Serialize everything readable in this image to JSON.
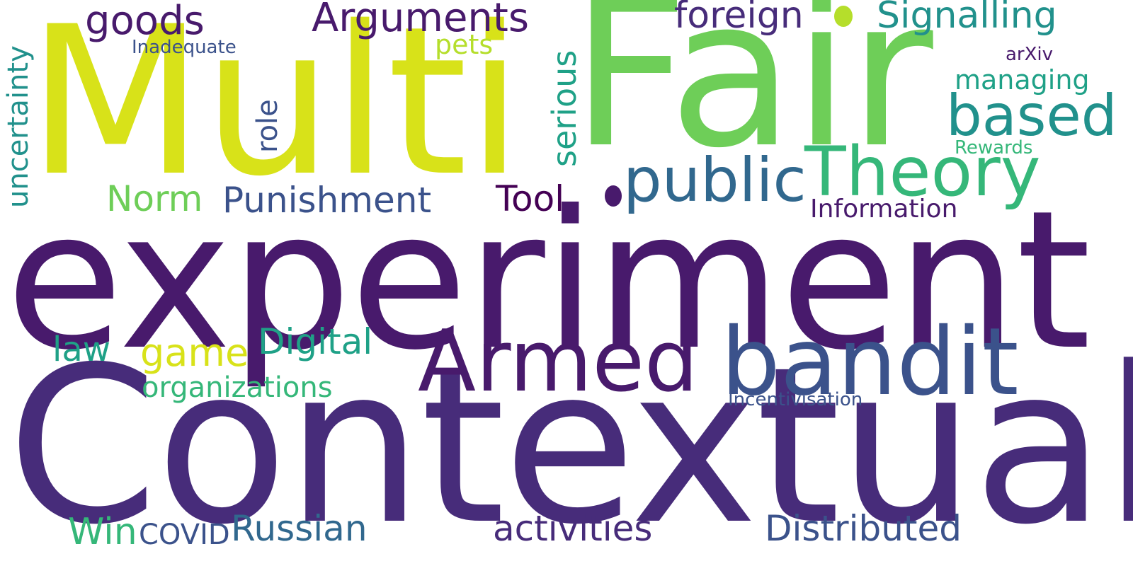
{
  "words": {
    "experiment": "experiment",
    "contextual": "Contextual",
    "multi": "Multi",
    "fair": "Fair",
    "armed": "Armed",
    "bandit": "bandit",
    "theory": "Theory",
    "public": "public",
    "based": "based",
    "goods": "goods",
    "arguments": "Arguments",
    "foreign": "foreign",
    "signalling": "Signalling",
    "inadequate": "Inadequate",
    "pets": "pets",
    "serious": "serious",
    "uncertainty": "uncertainty",
    "role": "role",
    "managing": "managing",
    "arxiv": "arXiv",
    "rewards": "Rewards",
    "norm": "Norm",
    "punishment": "Punishment",
    "tool": "Tool",
    "information": "Information",
    "law": "law",
    "game": "game",
    "digital": "Digital",
    "organizations": "organizations",
    "incentivisation": "Incentivisation",
    "win": "Win",
    "covid": "COVID",
    "russian": "Russian",
    "activities": "activities",
    "distributed": "Distributed"
  },
  "colors": {
    "dark_purple": "#481a6c",
    "indigo": "#472c7a",
    "slate_blue": "#3b528b",
    "steel_blue": "#31688e",
    "teal": "#21918c",
    "green_teal": "#1fa187",
    "mint": "#35b779",
    "green": "#6ece58",
    "lime": "#b5de2b",
    "yellow": "#d8e219",
    "deep_purple": "#440154"
  }
}
